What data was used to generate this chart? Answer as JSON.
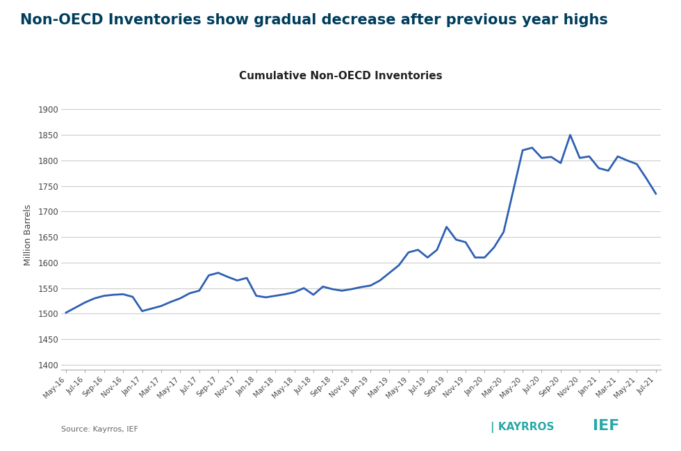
{
  "title": "Non-OECD Inventories show gradual decrease after previous year highs",
  "subtitle": "Cumulative Non-OECD Inventories",
  "ylabel": "Million Barrels",
  "source": "Source: Kayrros, IEF",
  "title_color": "#003d5c",
  "background_color": "#ffffff",
  "line_color": "#2d5fb3",
  "grid_color": "#cccccc",
  "ylim": [
    1390,
    1920
  ],
  "yticks": [
    1400,
    1450,
    1500,
    1550,
    1600,
    1650,
    1700,
    1750,
    1800,
    1850,
    1900
  ],
  "x_labels": [
    "May-16",
    "Jul-16",
    "Sep-16",
    "Nov-16",
    "Jan-17",
    "Mar-17",
    "May-17",
    "Jul-17",
    "Sep-17",
    "Nov-17",
    "Jan-18",
    "Mar-18",
    "May-18",
    "Jul-18",
    "Sep-18",
    "Nov-18",
    "Jan-19",
    "Mar-19",
    "May-19",
    "Jul-19",
    "Sep-19",
    "Nov-19",
    "Jan-20",
    "Mar-20",
    "May-20",
    "Jul-20",
    "Sep-20",
    "Nov-20",
    "Jan-21",
    "Mar-21",
    "May-21",
    "Jul-21"
  ],
  "monthly_values": [
    1502,
    1512,
    1522,
    1530,
    1535,
    1537,
    1538,
    1533,
    1505,
    1510,
    1515,
    1523,
    1530,
    1540,
    1545,
    1575,
    1580,
    1572,
    1565,
    1570,
    1535,
    1532,
    1535,
    1538,
    1542,
    1550,
    1537,
    1553,
    1548,
    1545,
    1548,
    1552,
    1555,
    1565,
    1580,
    1595,
    1620,
    1625,
    1610,
    1625,
    1670,
    1645,
    1640,
    1610,
    1610,
    1630,
    1660,
    1740,
    1820,
    1825,
    1805,
    1807,
    1795,
    1850,
    1805,
    1808,
    1785,
    1780,
    1808,
    1800,
    1793,
    1765,
    1735
  ]
}
